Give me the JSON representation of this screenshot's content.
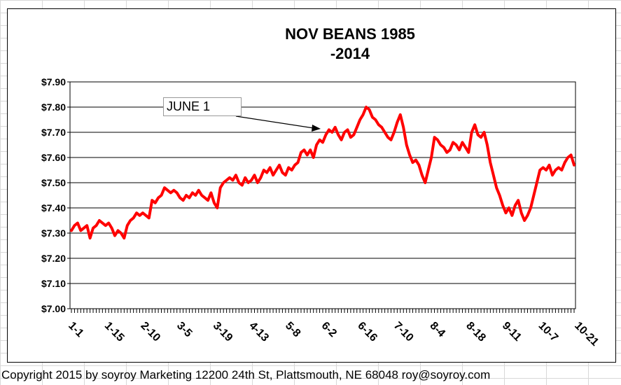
{
  "chart_data": {
    "type": "line",
    "title_line1": "NOV BEANS 1985",
    "title_line2": "-2014",
    "xlabel": "",
    "ylabel": "",
    "ylim": [
      7.0,
      7.9
    ],
    "y_ticks": [
      "$7.90",
      "$7.80",
      "$7.70",
      "$7.60",
      "$7.50",
      "$7.40",
      "$7.30",
      "$7.20",
      "$7.10",
      "$7.00"
    ],
    "x_tick_labels": [
      "1-1",
      "1-15",
      "2-10",
      "3-5",
      "3-19",
      "4-13",
      "5-8",
      "6-2",
      "6-16",
      "7-10",
      "8-4",
      "8-18",
      "9-11",
      "10-7",
      "10-21"
    ],
    "grid": true,
    "series": [
      {
        "color": "#ff0000",
        "values": [
          7.31,
          7.33,
          7.34,
          7.31,
          7.32,
          7.33,
          7.28,
          7.32,
          7.33,
          7.35,
          7.34,
          7.33,
          7.34,
          7.32,
          7.29,
          7.31,
          7.3,
          7.28,
          7.33,
          7.35,
          7.36,
          7.38,
          7.37,
          7.38,
          7.37,
          7.36,
          7.43,
          7.42,
          7.44,
          7.45,
          7.48,
          7.47,
          7.46,
          7.47,
          7.46,
          7.44,
          7.43,
          7.45,
          7.44,
          7.46,
          7.45,
          7.47,
          7.45,
          7.44,
          7.43,
          7.46,
          7.42,
          7.4,
          7.48,
          7.5,
          7.51,
          7.52,
          7.51,
          7.53,
          7.5,
          7.49,
          7.52,
          7.5,
          7.51,
          7.53,
          7.5,
          7.52,
          7.55,
          7.54,
          7.56,
          7.53,
          7.55,
          7.57,
          7.54,
          7.53,
          7.56,
          7.55,
          7.57,
          7.58,
          7.62,
          7.63,
          7.61,
          7.63,
          7.6,
          7.65,
          7.67,
          7.66,
          7.69,
          7.71,
          7.7,
          7.72,
          7.69,
          7.67,
          7.7,
          7.71,
          7.68,
          7.69,
          7.72,
          7.75,
          7.77,
          7.8,
          7.79,
          7.76,
          7.75,
          7.73,
          7.72,
          7.7,
          7.68,
          7.67,
          7.7,
          7.74,
          7.77,
          7.72,
          7.65,
          7.61,
          7.58,
          7.59,
          7.57,
          7.53,
          7.5,
          7.55,
          7.6,
          7.68,
          7.67,
          7.65,
          7.64,
          7.62,
          7.63,
          7.66,
          7.65,
          7.63,
          7.66,
          7.64,
          7.62,
          7.7,
          7.73,
          7.69,
          7.68,
          7.7,
          7.65,
          7.58,
          7.53,
          7.48,
          7.45,
          7.41,
          7.38,
          7.4,
          7.37,
          7.41,
          7.43,
          7.38,
          7.35,
          7.37,
          7.4,
          7.45,
          7.5,
          7.55,
          7.56,
          7.55,
          7.57,
          7.53,
          7.55,
          7.56,
          7.55,
          7.58,
          7.6,
          7.61,
          7.57
        ]
      }
    ],
    "annotations": [
      {
        "text": "JUNE 1"
      }
    ]
  },
  "footer": {
    "copyright": "Copyright 2015 by soyroy Marketing 12200 24th St, Plattsmouth, NE 68048 roy@soyroy.com"
  }
}
